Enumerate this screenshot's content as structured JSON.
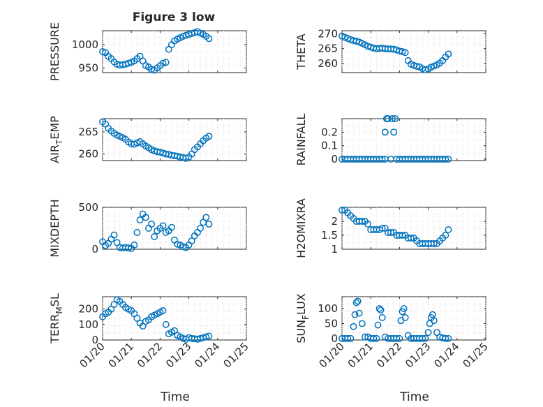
{
  "figure": {
    "title": "Figure 3 low",
    "xlabel_left": "Time",
    "xlabel_right": "Time",
    "xtick_labels": [
      "01/20",
      "01/21",
      "01/22",
      "01/23",
      "01/24",
      "01/25"
    ],
    "marker_color": "#0072BD"
  },
  "chart_data": [
    {
      "type": "scatter",
      "ylabel": "PRESSURE",
      "xlim": [
        0,
        5
      ],
      "ylim": [
        940,
        1030
      ],
      "yticks": [
        950,
        1000
      ],
      "x": [
        0.0,
        0.1,
        0.2,
        0.3,
        0.4,
        0.5,
        0.6,
        0.7,
        0.8,
        0.9,
        1.0,
        1.1,
        1.2,
        1.3,
        1.4,
        1.5,
        1.6,
        1.7,
        1.8,
        1.9,
        2.0,
        2.1,
        2.2,
        2.3,
        2.4,
        2.5,
        2.6,
        2.7,
        2.8,
        2.9,
        3.0,
        3.1,
        3.2,
        3.3,
        3.4,
        3.5,
        3.6,
        3.7
      ],
      "y": [
        985,
        983,
        975,
        970,
        963,
        958,
        956,
        957,
        958,
        960,
        962,
        965,
        970,
        975,
        965,
        955,
        952,
        947,
        945,
        950,
        955,
        960,
        962,
        990,
        1000,
        1008,
        1012,
        1015,
        1018,
        1020,
        1022,
        1024,
        1026,
        1028,
        1025,
        1022,
        1018,
        1013
      ]
    },
    {
      "type": "scatter",
      "ylabel": "AIR_TEMP",
      "xlim": [
        0,
        5
      ],
      "ylim": [
        258.5,
        268
      ],
      "yticks": [
        260,
        265
      ],
      "x": [
        0.0,
        0.1,
        0.2,
        0.3,
        0.4,
        0.5,
        0.6,
        0.7,
        0.8,
        0.9,
        1.0,
        1.1,
        1.2,
        1.3,
        1.4,
        1.5,
        1.6,
        1.7,
        1.8,
        1.9,
        2.0,
        2.1,
        2.2,
        2.3,
        2.4,
        2.5,
        2.6,
        2.7,
        2.8,
        2.9,
        3.0,
        3.1,
        3.2,
        3.3,
        3.4,
        3.5,
        3.6,
        3.7
      ],
      "y": [
        267.3,
        266.8,
        265.8,
        265.2,
        264.7,
        264.3,
        264.0,
        263.7,
        263.3,
        262.7,
        262.3,
        262.2,
        262.5,
        262.8,
        262.3,
        261.8,
        261.4,
        261.0,
        260.7,
        260.5,
        260.4,
        260.2,
        260.0,
        259.9,
        259.7,
        259.6,
        259.5,
        259.3,
        259.2,
        259.0,
        259.3,
        260.0,
        261.0,
        261.6,
        262.3,
        263.0,
        263.6,
        264.0
      ]
    },
    {
      "type": "scatter",
      "ylabel": "MIXDEPTH",
      "xlim": [
        0,
        5
      ],
      "ylim": [
        0,
        500
      ],
      "yticks": [
        0,
        500
      ],
      "x": [
        0.0,
        0.1,
        0.2,
        0.3,
        0.4,
        0.5,
        0.6,
        0.7,
        0.8,
        0.9,
        1.0,
        1.1,
        1.2,
        1.3,
        1.4,
        1.5,
        1.6,
        1.7,
        1.8,
        1.9,
        2.0,
        2.1,
        2.2,
        2.3,
        2.4,
        2.5,
        2.6,
        2.7,
        2.8,
        2.9,
        3.0,
        3.1,
        3.2,
        3.3,
        3.4,
        3.5,
        3.6,
        3.7
      ],
      "y": [
        90,
        45,
        70,
        120,
        170,
        80,
        20,
        15,
        20,
        15,
        10,
        50,
        200,
        350,
        420,
        380,
        250,
        300,
        150,
        220,
        250,
        280,
        200,
        220,
        260,
        110,
        60,
        50,
        30,
        20,
        50,
        100,
        160,
        200,
        250,
        320,
        380,
        300
      ]
    },
    {
      "type": "scatter",
      "ylabel": "TERR_MSL",
      "xlim": [
        0,
        5
      ],
      "ylim": [
        0,
        280
      ],
      "yticks": [
        0,
        100,
        200
      ],
      "x": [
        0.0,
        0.1,
        0.2,
        0.3,
        0.4,
        0.5,
        0.6,
        0.7,
        0.8,
        0.9,
        1.0,
        1.1,
        1.2,
        1.3,
        1.4,
        1.5,
        1.6,
        1.7,
        1.8,
        1.9,
        2.0,
        2.1,
        2.2,
        2.3,
        2.4,
        2.5,
        2.6,
        2.7,
        2.8,
        2.9,
        3.0,
        3.1,
        3.2,
        3.3,
        3.4,
        3.5,
        3.6,
        3.7
      ],
      "y": [
        150,
        170,
        180,
        200,
        230,
        260,
        250,
        230,
        210,
        200,
        190,
        170,
        140,
        110,
        90,
        120,
        130,
        150,
        160,
        170,
        180,
        190,
        100,
        40,
        50,
        60,
        30,
        20,
        10,
        5,
        15,
        10,
        8,
        5,
        10,
        15,
        20,
        25
      ]
    },
    {
      "type": "scatter",
      "ylabel": "THETA",
      "xlim": [
        0,
        5
      ],
      "ylim": [
        257,
        271
      ],
      "yticks": [
        260,
        265,
        270
      ],
      "x": [
        0.0,
        0.1,
        0.2,
        0.3,
        0.4,
        0.5,
        0.6,
        0.7,
        0.8,
        0.9,
        1.0,
        1.1,
        1.2,
        1.3,
        1.4,
        1.5,
        1.6,
        1.7,
        1.8,
        1.9,
        2.0,
        2.1,
        2.2,
        2.3,
        2.4,
        2.5,
        2.6,
        2.7,
        2.8,
        2.9,
        3.0,
        3.1,
        3.2,
        3.3,
        3.4,
        3.5,
        3.6,
        3.7
      ],
      "y": [
        269.2,
        268.8,
        268.4,
        268.0,
        267.7,
        267.5,
        267.2,
        266.8,
        266.3,
        265.8,
        265.5,
        265.2,
        265.0,
        265.1,
        265.2,
        265.0,
        264.9,
        264.9,
        264.8,
        264.6,
        264.2,
        264.0,
        263.7,
        261.0,
        259.8,
        259.4,
        259.1,
        258.9,
        258.3,
        257.9,
        258.2,
        258.8,
        259.2,
        259.6,
        260.2,
        261.0,
        262.2,
        263.2
      ]
    },
    {
      "type": "scatter",
      "ylabel": "RAINFALL",
      "xlim": [
        0,
        5
      ],
      "ylim": [
        -0.01,
        0.3
      ],
      "yticks": [
        0,
        0.1,
        0.2
      ],
      "x": [
        0.0,
        0.1,
        0.2,
        0.3,
        0.4,
        0.5,
        0.6,
        0.7,
        0.8,
        0.9,
        1.0,
        1.1,
        1.2,
        1.3,
        1.4,
        1.5,
        1.5,
        1.55,
        1.6,
        1.7,
        1.75,
        1.8,
        1.85,
        1.9,
        2.0,
        2.1,
        2.2,
        2.3,
        2.4,
        2.5,
        2.6,
        2.7,
        2.8,
        2.9,
        3.0,
        3.1,
        3.2,
        3.3,
        3.4,
        3.5,
        3.6,
        3.7
      ],
      "y": [
        0,
        0,
        0,
        0,
        0,
        0,
        0,
        0,
        0,
        0,
        0,
        0,
        0,
        0,
        0,
        0,
        0.2,
        0.3,
        0.3,
        0,
        0.3,
        0.2,
        0.3,
        0,
        0,
        0,
        0,
        0,
        0,
        0,
        0,
        0,
        0,
        0,
        0,
        0,
        0,
        0,
        0,
        0,
        0,
        0
      ]
    },
    {
      "type": "scatter",
      "ylabel": "H2OMIXRA",
      "xlim": [
        0,
        5
      ],
      "ylim": [
        1,
        2.5
      ],
      "yticks": [
        1,
        1.5,
        2
      ],
      "x": [
        0.0,
        0.1,
        0.2,
        0.3,
        0.4,
        0.5,
        0.6,
        0.7,
        0.8,
        0.9,
        1.0,
        1.1,
        1.2,
        1.3,
        1.4,
        1.5,
        1.6,
        1.7,
        1.8,
        1.9,
        2.0,
        2.1,
        2.2,
        2.3,
        2.4,
        2.5,
        2.6,
        2.7,
        2.8,
        2.9,
        3.0,
        3.1,
        3.2,
        3.3,
        3.4,
        3.5,
        3.6,
        3.7
      ],
      "y": [
        2.4,
        2.4,
        2.3,
        2.2,
        2.1,
        2.0,
        2.0,
        2.0,
        2.0,
        1.9,
        1.7,
        1.7,
        1.7,
        1.7,
        1.75,
        1.75,
        1.6,
        1.6,
        1.6,
        1.5,
        1.5,
        1.5,
        1.5,
        1.4,
        1.4,
        1.4,
        1.3,
        1.2,
        1.2,
        1.2,
        1.2,
        1.2,
        1.2,
        1.2,
        1.3,
        1.4,
        1.5,
        1.7
      ]
    },
    {
      "type": "scatter",
      "ylabel": "SUN_FLUX",
      "xlim": [
        0,
        5
      ],
      "ylim": [
        -5,
        140
      ],
      "yticks": [
        0,
        50,
        100
      ],
      "x": [
        0.0,
        0.1,
        0.2,
        0.3,
        0.4,
        0.45,
        0.5,
        0.55,
        0.6,
        0.7,
        0.8,
        0.9,
        1.0,
        1.1,
        1.2,
        1.25,
        1.3,
        1.35,
        1.4,
        1.5,
        1.6,
        1.7,
        1.8,
        1.9,
        2.0,
        2.05,
        2.1,
        2.15,
        2.2,
        2.3,
        2.4,
        2.5,
        2.6,
        2.7,
        2.8,
        2.9,
        3.0,
        3.05,
        3.1,
        3.15,
        3.2,
        3.3,
        3.4,
        3.5,
        3.6,
        3.7
      ],
      "y": [
        0,
        0,
        0,
        0,
        40,
        80,
        120,
        125,
        85,
        50,
        5,
        5,
        0,
        0,
        0,
        45,
        100,
        95,
        70,
        5,
        0,
        0,
        0,
        0,
        0,
        60,
        90,
        100,
        70,
        10,
        0,
        0,
        0,
        0,
        0,
        0,
        20,
        50,
        70,
        80,
        60,
        20,
        5,
        2,
        0,
        0
      ]
    }
  ]
}
